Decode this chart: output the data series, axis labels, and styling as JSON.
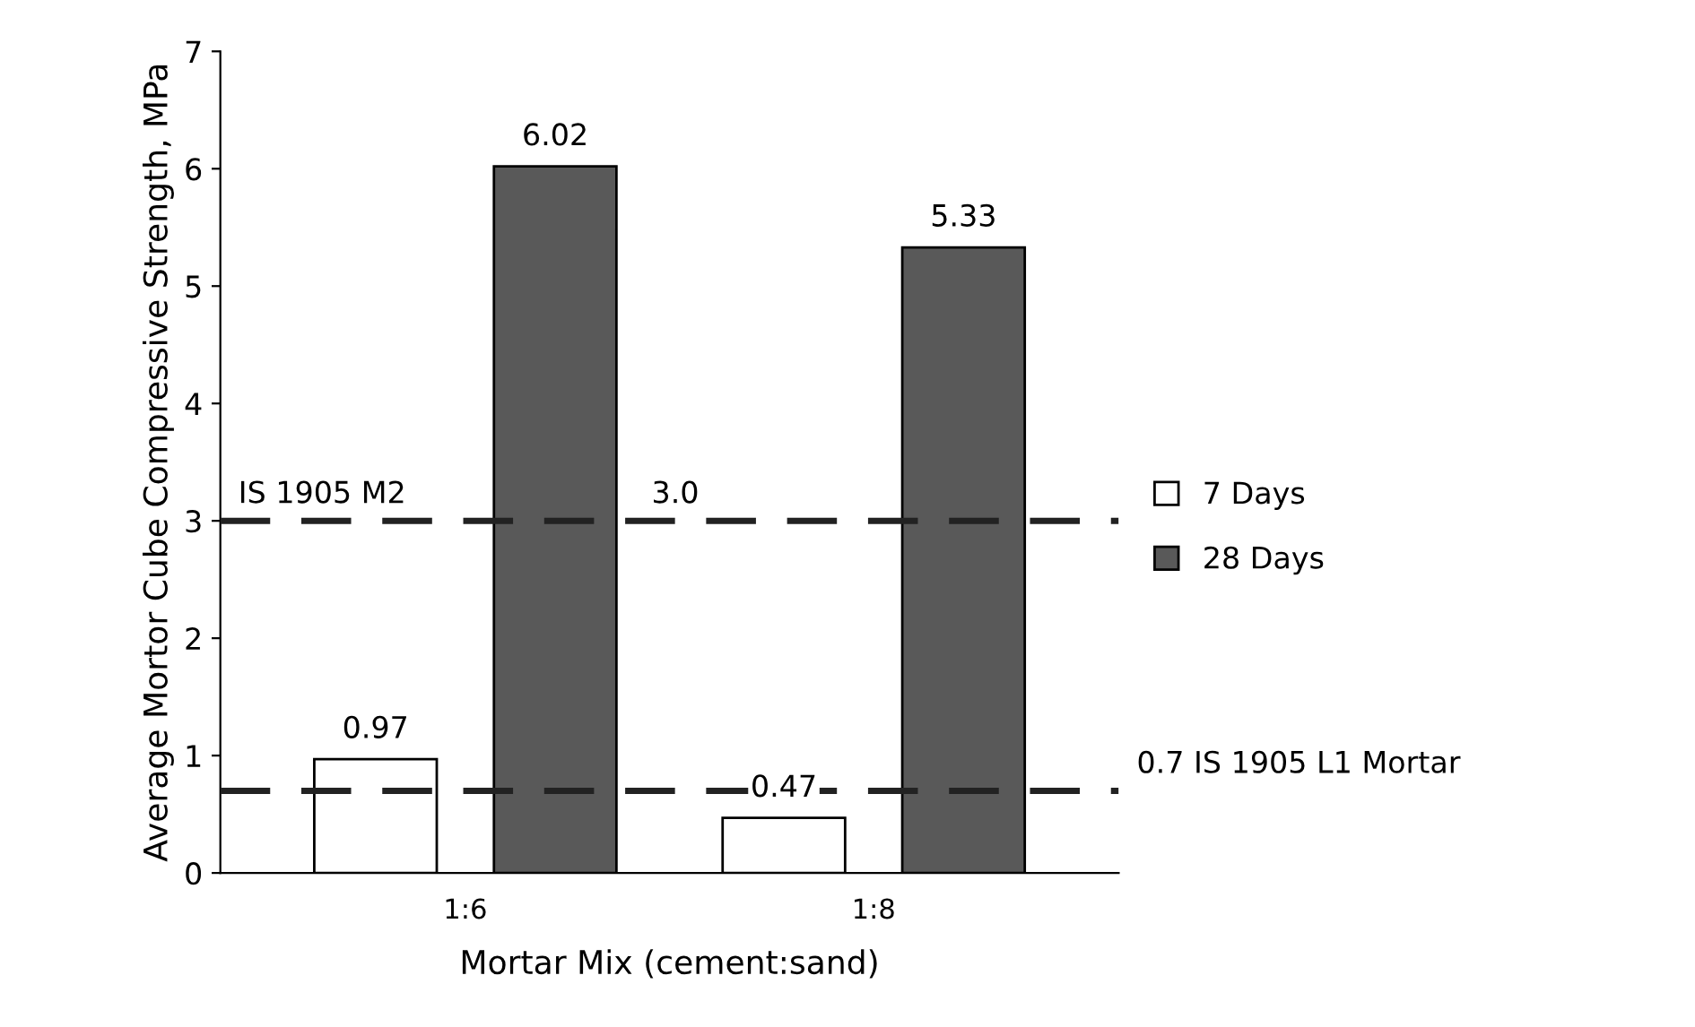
{
  "chart_data": {
    "type": "bar",
    "xlabel": "Mortar Mix (cement:sand)",
    "ylabel": "Average Mortor Cube Compressive Strength, MPa",
    "categories": [
      "1:6",
      "1:8"
    ],
    "series": [
      {
        "name": "7 Days",
        "color": "#ffffff",
        "values": [
          0.97,
          0.47
        ]
      },
      {
        "name": "28 Days",
        "color": "#595959",
        "values": [
          6.02,
          5.33
        ]
      }
    ],
    "ylim": [
      0,
      7
    ],
    "yticks": [
      0,
      1,
      2,
      3,
      4,
      5,
      6,
      7
    ],
    "grid": false,
    "legend": "right",
    "data_labels": true,
    "ref_lines": [
      {
        "axis": "y",
        "value": 3.0,
        "label": "IS 1905 M2",
        "color": "#222222",
        "line_style": "dashed"
      },
      {
        "axis": "y",
        "value": 0.7,
        "label": "0.7 IS 1905 L1 Mortar",
        "color": "#222222",
        "line_style": "dashed"
      }
    ],
    "annotations": [
      {
        "text": "3.0",
        "y": 3.0
      }
    ]
  }
}
